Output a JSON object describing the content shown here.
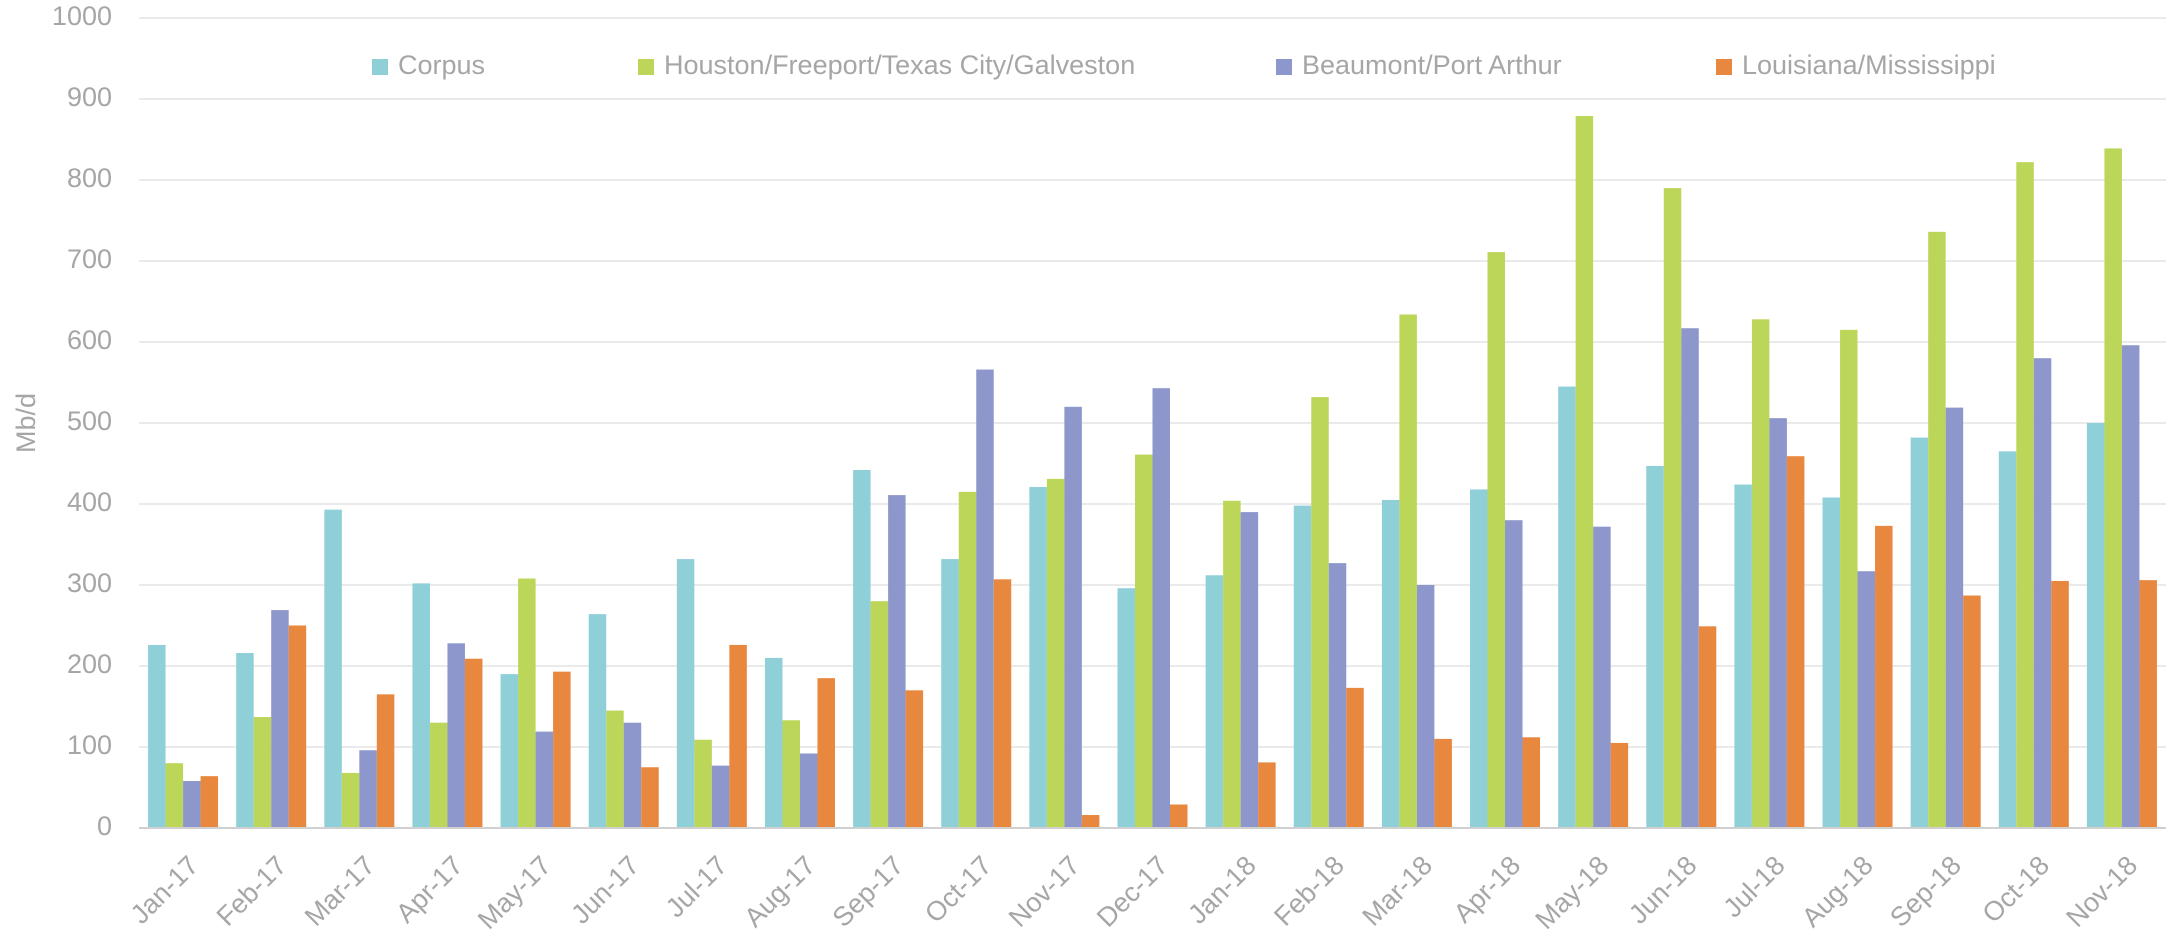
{
  "chart_data": {
    "type": "bar",
    "y_label": "Mb/d",
    "categories": [
      "Jan-17",
      "Feb-17",
      "Mar-17",
      "Apr-17",
      "May-17",
      "Jun-17",
      "Jul-17",
      "Aug-17",
      "Sep-17",
      "Oct-17",
      "Nov-17",
      "Dec-17",
      "Jan-18",
      "Feb-18",
      "Mar-18",
      "Apr-18",
      "May-18",
      "Jun-18",
      "Jul-18",
      "Aug-18",
      "Sep-18",
      "Oct-18",
      "Nov-18"
    ],
    "series": [
      {
        "name": "Corpus",
        "color": "#8ecfd8",
        "values": [
          226,
          216,
          393,
          302,
          190,
          264,
          332,
          210,
          442,
          332,
          421,
          296,
          312,
          398,
          405,
          418,
          545,
          447,
          424,
          408,
          482,
          465,
          500
        ]
      },
      {
        "name": "Houston/Freeport/Texas City/Galveston",
        "color": "#bcd65a",
        "values": [
          80,
          137,
          68,
          130,
          308,
          145,
          109,
          133,
          280,
          415,
          431,
          461,
          404,
          532,
          634,
          711,
          879,
          790,
          628,
          615,
          736,
          822,
          839
        ]
      },
      {
        "name": "Beaumont/Port Arthur",
        "color": "#8e97cb",
        "values": [
          58,
          269,
          96,
          228,
          119,
          130,
          77,
          92,
          411,
          566,
          520,
          543,
          390,
          327,
          300,
          380,
          372,
          617,
          506,
          317,
          519,
          580,
          596
        ]
      },
      {
        "name": "Louisiana/Mississippi",
        "color": "#e8873e",
        "values": [
          64,
          250,
          165,
          209,
          193,
          75,
          226,
          185,
          170,
          307,
          16,
          29,
          81,
          173,
          110,
          112,
          105,
          249,
          459,
          373,
          287,
          305,
          306
        ]
      }
    ],
    "ylim": [
      0,
      1000
    ],
    "yticks": [
      0,
      100,
      200,
      300,
      400,
      500,
      600,
      700,
      800,
      900,
      1000
    ],
    "grid": true,
    "legend": "top"
  }
}
